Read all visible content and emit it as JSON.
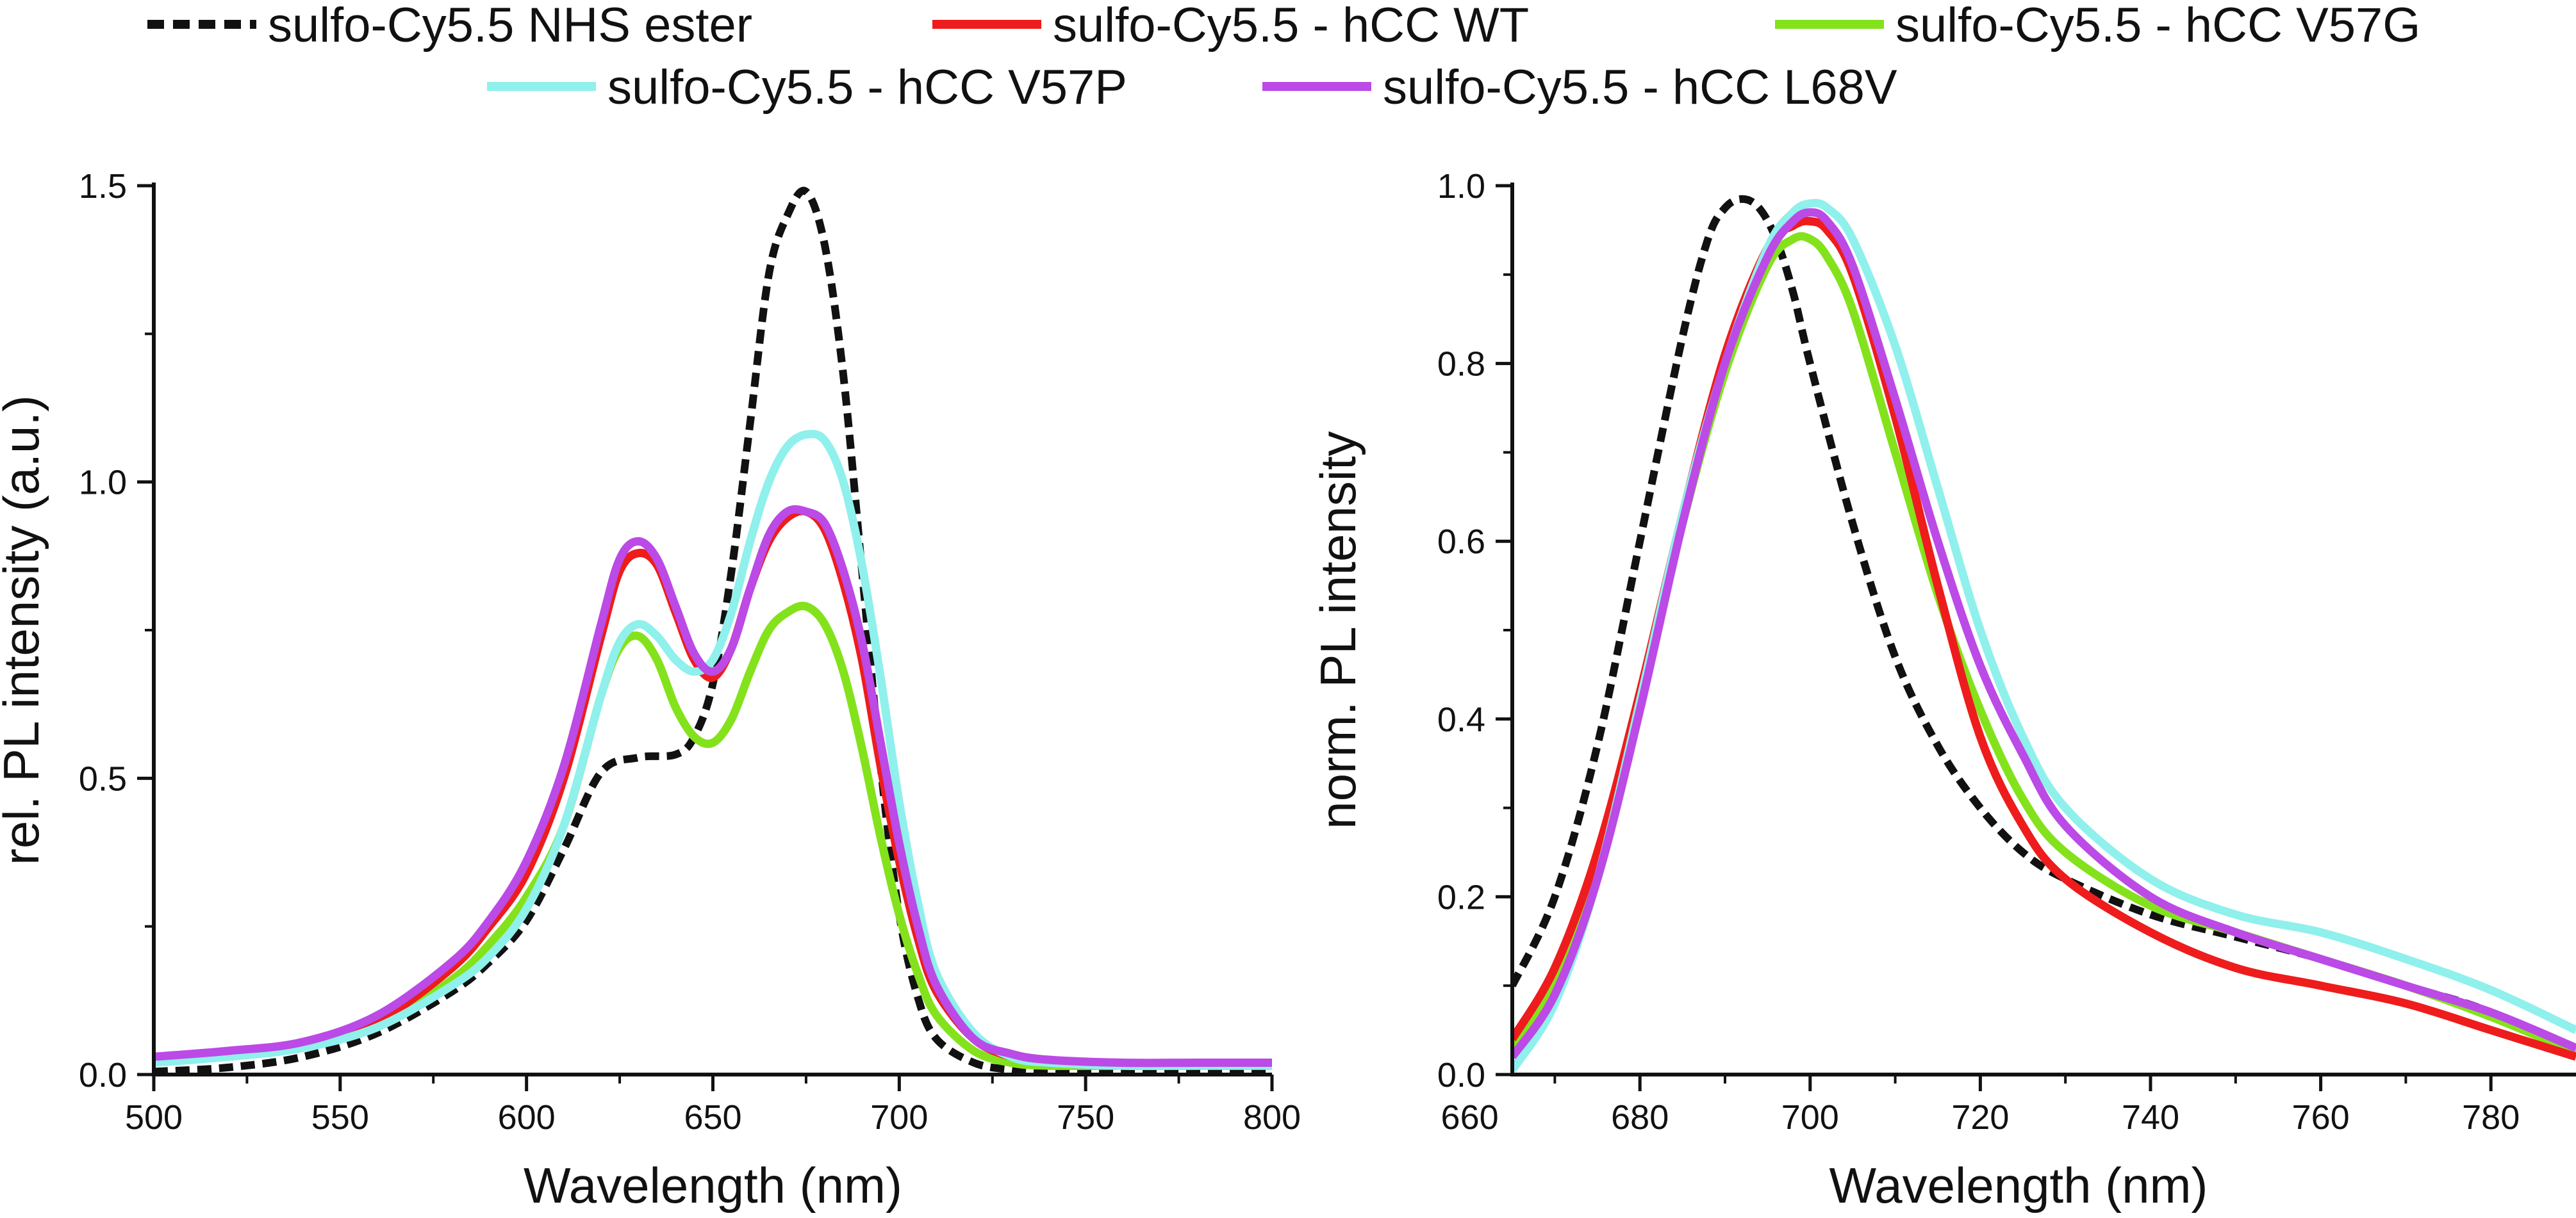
{
  "legend": [
    {
      "name": "sulfo-Cy5.5 NHS ester",
      "color": "#111111",
      "dashed": true
    },
    {
      "name": "sulfo-Cy5.5 - hCC WT",
      "color": "#ee1c1c",
      "dashed": false
    },
    {
      "name": "sulfo-Cy5.5 - hCC V57G",
      "color": "#84e21c",
      "dashed": false
    },
    {
      "name": "sulfo-Cy5.5 - hCC V57P",
      "color": "#8ff0ec",
      "dashed": false
    },
    {
      "name": "sulfo-Cy5.5 - hCC L68V",
      "color": "#bb4ae6",
      "dashed": false
    }
  ],
  "chart_data": [
    {
      "type": "line",
      "xlabel": "Wavelength (nm)",
      "ylabel": "rel. PL intensity (a.u.)",
      "xlim": [
        500,
        800
      ],
      "ylim": [
        0,
        1.5
      ],
      "xticks": [
        500,
        550,
        600,
        650,
        700,
        750,
        800
      ],
      "yticks": [
        0.0,
        0.5,
        1.0,
        1.5
      ],
      "ytick_labels": [
        "0.0",
        "0.5",
        "1.0",
        "1.5"
      ],
      "series": [
        {
          "name": "sulfo-Cy5.5 NHS ester",
          "x": [
            500,
            520,
            540,
            560,
            580,
            590,
            600,
            610,
            620,
            630,
            640,
            645,
            650,
            655,
            660,
            665,
            670,
            675,
            680,
            685,
            690,
            695,
            700,
            705,
            710,
            720,
            730,
            740,
            760,
            780,
            800
          ],
          "y": [
            0.005,
            0.012,
            0.03,
            0.07,
            0.14,
            0.19,
            0.26,
            0.38,
            0.51,
            0.535,
            0.54,
            0.57,
            0.66,
            0.85,
            1.1,
            1.35,
            1.45,
            1.49,
            1.4,
            1.18,
            0.85,
            0.52,
            0.27,
            0.13,
            0.06,
            0.02,
            0.008,
            0.004,
            0.002,
            0.002,
            0.002
          ]
        },
        {
          "name": "sulfo-Cy5.5 - hCC WT",
          "x": [
            500,
            520,
            540,
            560,
            580,
            590,
            600,
            610,
            620,
            625,
            630,
            635,
            640,
            645,
            650,
            655,
            660,
            665,
            670,
            675,
            680,
            685,
            690,
            695,
            700,
            705,
            710,
            720,
            730,
            740,
            760,
            780,
            800
          ],
          "y": [
            0.025,
            0.035,
            0.05,
            0.09,
            0.18,
            0.25,
            0.34,
            0.5,
            0.74,
            0.85,
            0.88,
            0.86,
            0.78,
            0.7,
            0.67,
            0.72,
            0.82,
            0.9,
            0.94,
            0.95,
            0.92,
            0.83,
            0.7,
            0.52,
            0.36,
            0.23,
            0.14,
            0.06,
            0.03,
            0.02,
            0.015,
            0.015,
            0.015
          ]
        },
        {
          "name": "sulfo-Cy5.5 - hCC V57G",
          "x": [
            500,
            520,
            540,
            560,
            580,
            590,
            600,
            610,
            620,
            625,
            630,
            635,
            640,
            645,
            650,
            655,
            660,
            665,
            670,
            675,
            680,
            685,
            690,
            695,
            700,
            705,
            710,
            720,
            730,
            740,
            760,
            780,
            800
          ],
          "y": [
            0.025,
            0.035,
            0.05,
            0.08,
            0.16,
            0.22,
            0.3,
            0.42,
            0.64,
            0.72,
            0.74,
            0.7,
            0.62,
            0.57,
            0.56,
            0.6,
            0.68,
            0.75,
            0.78,
            0.79,
            0.76,
            0.68,
            0.55,
            0.4,
            0.27,
            0.17,
            0.1,
            0.04,
            0.02,
            0.015,
            0.015,
            0.015,
            0.015
          ]
        },
        {
          "name": "sulfo-Cy5.5 - hCC V57P",
          "x": [
            500,
            520,
            540,
            560,
            580,
            590,
            600,
            610,
            620,
            625,
            630,
            635,
            640,
            645,
            650,
            655,
            660,
            665,
            670,
            675,
            680,
            685,
            690,
            695,
            700,
            705,
            710,
            720,
            730,
            740,
            760,
            780,
            800
          ],
          "y": [
            0.02,
            0.03,
            0.045,
            0.08,
            0.15,
            0.2,
            0.28,
            0.42,
            0.64,
            0.73,
            0.76,
            0.74,
            0.7,
            0.68,
            0.7,
            0.78,
            0.9,
            1.0,
            1.06,
            1.08,
            1.07,
            1.0,
            0.86,
            0.67,
            0.46,
            0.29,
            0.17,
            0.07,
            0.03,
            0.02,
            0.015,
            0.015,
            0.015
          ]
        },
        {
          "name": "sulfo-Cy5.5 - hCC L68V",
          "x": [
            500,
            520,
            540,
            560,
            580,
            590,
            600,
            610,
            620,
            625,
            630,
            635,
            640,
            645,
            650,
            655,
            660,
            665,
            670,
            675,
            680,
            685,
            690,
            695,
            700,
            705,
            710,
            720,
            730,
            740,
            760,
            780,
            800
          ],
          "y": [
            0.03,
            0.04,
            0.055,
            0.1,
            0.19,
            0.26,
            0.36,
            0.52,
            0.76,
            0.87,
            0.9,
            0.87,
            0.79,
            0.71,
            0.68,
            0.72,
            0.82,
            0.91,
            0.95,
            0.95,
            0.93,
            0.85,
            0.73,
            0.56,
            0.39,
            0.25,
            0.15,
            0.06,
            0.035,
            0.025,
            0.02,
            0.02,
            0.02
          ]
        }
      ]
    },
    {
      "type": "line",
      "xlabel": "Wavelength (nm)",
      "ylabel": "norm. PL intensity",
      "xlim": [
        665,
        790
      ],
      "ylim": [
        0,
        1.0
      ],
      "xticks": [
        660,
        680,
        700,
        720,
        740,
        760,
        780
      ],
      "yticks": [
        0.0,
        0.2,
        0.4,
        0.6,
        0.8,
        1.0
      ],
      "ytick_labels": [
        "0.0",
        "0.2",
        "0.4",
        "0.6",
        "0.8",
        "1.0"
      ],
      "series": [
        {
          "name": "sulfo-Cy5.5 NHS ester",
          "x": [
            665,
            670,
            675,
            680,
            685,
            688,
            690,
            692,
            694,
            696,
            698,
            700,
            705,
            710,
            715,
            720,
            725,
            730,
            740,
            750,
            760,
            770,
            780,
            790
          ],
          "y": [
            0.1,
            0.2,
            0.37,
            0.6,
            0.83,
            0.94,
            0.975,
            0.985,
            0.975,
            0.94,
            0.88,
            0.8,
            0.62,
            0.47,
            0.37,
            0.3,
            0.25,
            0.22,
            0.18,
            0.155,
            0.13,
            0.1,
            0.07,
            0.02
          ]
        },
        {
          "name": "sulfo-Cy5.5 - hCC WT",
          "x": [
            665,
            670,
            675,
            680,
            685,
            690,
            695,
            698,
            700,
            702,
            705,
            710,
            715,
            720,
            725,
            730,
            740,
            750,
            760,
            770,
            780,
            790
          ],
          "y": [
            0.04,
            0.12,
            0.25,
            0.43,
            0.63,
            0.81,
            0.93,
            0.955,
            0.96,
            0.95,
            0.9,
            0.74,
            0.55,
            0.38,
            0.28,
            0.22,
            0.16,
            0.12,
            0.1,
            0.08,
            0.05,
            0.02
          ]
        },
        {
          "name": "sulfo-Cy5.5 - hCC V57G",
          "x": [
            665,
            670,
            675,
            680,
            685,
            690,
            695,
            698,
            700,
            702,
            705,
            710,
            715,
            720,
            725,
            730,
            740,
            750,
            760,
            770,
            780,
            790
          ],
          "y": [
            0.03,
            0.1,
            0.23,
            0.42,
            0.62,
            0.79,
            0.91,
            0.94,
            0.94,
            0.92,
            0.86,
            0.7,
            0.54,
            0.41,
            0.31,
            0.25,
            0.19,
            0.16,
            0.13,
            0.1,
            0.065,
            0.025
          ]
        },
        {
          "name": "sulfo-Cy5.5 - hCC V57P",
          "x": [
            665,
            670,
            675,
            680,
            685,
            690,
            695,
            698,
            700,
            702,
            705,
            710,
            715,
            720,
            725,
            730,
            740,
            750,
            760,
            770,
            780,
            790
          ],
          "y": [
            0.005,
            0.08,
            0.22,
            0.42,
            0.63,
            0.8,
            0.93,
            0.97,
            0.98,
            0.975,
            0.94,
            0.82,
            0.66,
            0.5,
            0.38,
            0.3,
            0.22,
            0.18,
            0.16,
            0.13,
            0.095,
            0.05
          ]
        },
        {
          "name": "sulfo-Cy5.5 - hCC L68V",
          "x": [
            665,
            670,
            675,
            680,
            685,
            690,
            695,
            698,
            700,
            702,
            705,
            710,
            715,
            720,
            725,
            730,
            740,
            750,
            760,
            770,
            780,
            790
          ],
          "y": [
            0.02,
            0.09,
            0.22,
            0.41,
            0.62,
            0.8,
            0.92,
            0.96,
            0.97,
            0.96,
            0.91,
            0.76,
            0.6,
            0.46,
            0.36,
            0.28,
            0.2,
            0.16,
            0.13,
            0.1,
            0.07,
            0.03
          ]
        }
      ]
    }
  ]
}
